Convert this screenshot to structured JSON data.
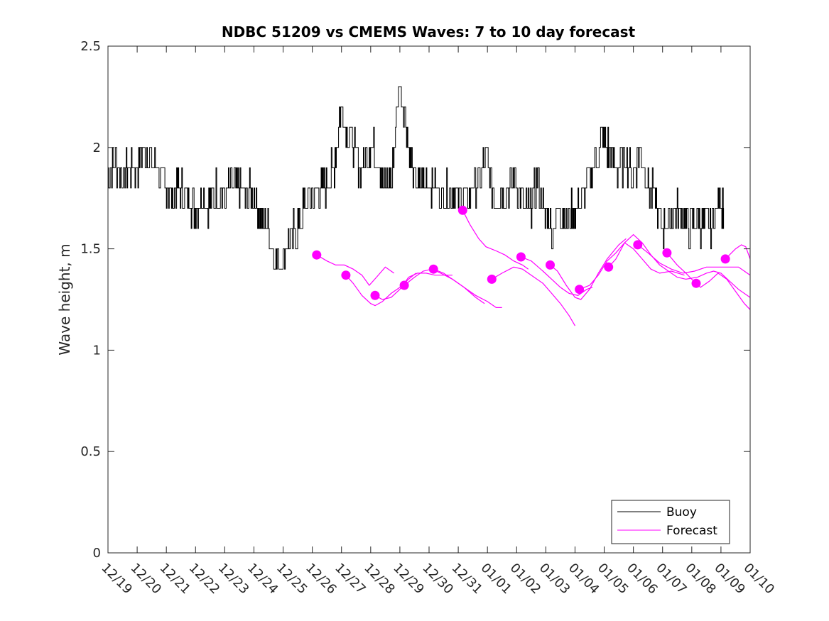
{
  "chart_data": {
    "type": "line",
    "title": "NDBC 51209 vs CMEMS Waves: 7 to 10 day forecast",
    "xlabel": "",
    "ylabel": "Wave height, m",
    "ylim": [
      0,
      2.5
    ],
    "yticks": [
      0,
      0.5,
      1,
      1.5,
      2,
      2.5
    ],
    "yticklabels": [
      "0",
      "0.5",
      "1",
      "1.5",
      "2",
      "2.5"
    ],
    "xlim": [
      0,
      22
    ],
    "xticklabels": [
      "12/19",
      "12/20",
      "12/21",
      "12/22",
      "12/23",
      "12/24",
      "12/25",
      "12/26",
      "12/27",
      "12/28",
      "12/29",
      "12/30",
      "12/31",
      "01/01",
      "01/02",
      "01/03",
      "01/04",
      "01/05",
      "01/06",
      "01/07",
      "01/08",
      "01/09",
      "01/10"
    ],
    "colors": {
      "buoy": "#000000",
      "forecast": "#ff00ff"
    },
    "legend": {
      "position": "bottom-right",
      "entries": [
        "Buoy",
        "Forecast"
      ]
    },
    "buoy": {
      "name": "Buoy",
      "x": [
        0,
        0.25,
        0.5,
        0.75,
        1,
        1.25,
        1.5,
        1.75,
        2,
        2.25,
        2.5,
        2.75,
        3,
        3.25,
        3.5,
        3.75,
        4,
        4.25,
        4.5,
        4.75,
        5,
        5.25,
        5.5,
        5.75,
        6,
        6.25,
        6.5,
        6.75,
        7,
        7.25,
        7.5,
        7.75,
        8,
        8.25,
        8.5,
        8.75,
        9,
        9.25,
        9.5,
        9.75,
        10,
        10.25,
        10.5,
        10.75,
        11,
        11.25,
        11.5,
        11.75,
        12,
        12.25,
        12.5,
        12.75,
        13,
        13.25,
        13.5,
        13.75,
        14,
        14.25,
        14.5,
        14.75,
        15,
        15.25,
        15.5,
        15.75,
        16,
        16.25,
        16.5,
        16.75,
        17,
        17.25,
        17.5,
        17.75,
        18,
        18.25,
        18.5,
        18.75,
        19,
        19.25,
        19.5,
        19.75,
        20,
        20.25,
        20.5,
        20.75,
        21,
        21.1
      ],
      "values": [
        1.85,
        1.95,
        1.85,
        1.9,
        1.9,
        2.0,
        1.95,
        1.9,
        1.8,
        1.75,
        1.8,
        1.75,
        1.7,
        1.75,
        1.7,
        1.8,
        1.75,
        1.8,
        1.8,
        1.75,
        1.8,
        1.65,
        1.6,
        1.45,
        1.45,
        1.55,
        1.6,
        1.7,
        1.75,
        1.8,
        1.8,
        1.9,
        2.2,
        2.1,
        1.95,
        1.9,
        2.0,
        1.95,
        1.8,
        1.85,
        2.35,
        2.1,
        1.85,
        1.8,
        1.85,
        1.8,
        1.75,
        1.8,
        1.75,
        1.75,
        1.8,
        1.85,
        1.95,
        1.75,
        1.8,
        1.8,
        1.85,
        1.7,
        1.7,
        1.85,
        1.65,
        1.6,
        1.7,
        1.65,
        1.7,
        1.75,
        1.85,
        1.95,
        2.05,
        1.95,
        1.9,
        1.95,
        1.85,
        2.0,
        1.8,
        1.75,
        1.6,
        1.65,
        1.7,
        1.65,
        1.6,
        1.65,
        1.6,
        1.65,
        1.75,
        1.7
      ]
    },
    "forecast_segments": [
      {
        "x": [
          7.15,
          7.5,
          7.8,
          8.1,
          8.4,
          8.7,
          8.95,
          9.2,
          9.5,
          9.8
        ],
        "values": [
          1.47,
          1.44,
          1.42,
          1.42,
          1.4,
          1.37,
          1.32,
          1.36,
          1.41,
          1.38
        ]
      },
      {
        "x": [
          8.15,
          8.4,
          8.7,
          9.0,
          9.15,
          9.4,
          9.7,
          10.0,
          10.3,
          10.55
        ],
        "values": [
          1.37,
          1.33,
          1.27,
          1.23,
          1.22,
          1.24,
          1.28,
          1.31,
          1.35,
          1.38
        ]
      },
      {
        "x": [
          9.15,
          9.4,
          9.7,
          10.0,
          10.3,
          10.6,
          10.9,
          11.2,
          11.5,
          11.8
        ],
        "values": [
          1.27,
          1.25,
          1.26,
          1.3,
          1.36,
          1.38,
          1.38,
          1.37,
          1.37,
          1.37
        ]
      },
      {
        "x": [
          10.15,
          10.5,
          10.8,
          11.1,
          11.4,
          11.8,
          12.2,
          12.6,
          12.9
        ],
        "values": [
          1.32,
          1.36,
          1.39,
          1.4,
          1.38,
          1.35,
          1.31,
          1.26,
          1.23
        ]
      },
      {
        "x": [
          11.15,
          11.5,
          11.9,
          12.3,
          12.6,
          13.0,
          13.3,
          13.5
        ],
        "values": [
          1.4,
          1.38,
          1.34,
          1.3,
          1.27,
          1.24,
          1.21,
          1.21
        ]
      },
      {
        "x": [
          12.15,
          12.4,
          12.7,
          12.95,
          13.3,
          13.6,
          13.9,
          14.2,
          14.4
        ],
        "values": [
          1.69,
          1.62,
          1.55,
          1.51,
          1.49,
          1.47,
          1.44,
          1.42,
          1.4
        ]
      },
      {
        "x": [
          13.15,
          13.5,
          13.9,
          14.2,
          14.5,
          14.9,
          15.2,
          15.5,
          15.8,
          16.0
        ],
        "values": [
          1.35,
          1.38,
          1.41,
          1.4,
          1.37,
          1.33,
          1.28,
          1.23,
          1.17,
          1.12
        ]
      },
      {
        "x": [
          14.15,
          14.5,
          14.9,
          15.2,
          15.5,
          15.8,
          16.1,
          16.4,
          16.6
        ],
        "values": [
          1.46,
          1.44,
          1.39,
          1.35,
          1.31,
          1.28,
          1.27,
          1.3,
          1.31
        ]
      },
      {
        "x": [
          15.15,
          15.4,
          15.7,
          16.0,
          16.2,
          16.5,
          16.8,
          17.1,
          17.5,
          17.75
        ],
        "values": [
          1.42,
          1.39,
          1.32,
          1.26,
          1.25,
          1.3,
          1.38,
          1.45,
          1.52,
          1.55
        ]
      },
      {
        "x": [
          16.15,
          16.5,
          16.8,
          17.1,
          17.4,
          17.7,
          18.0,
          18.3,
          18.6,
          18.9,
          19.3,
          19.75
        ],
        "values": [
          1.3,
          1.32,
          1.37,
          1.44,
          1.48,
          1.53,
          1.5,
          1.45,
          1.4,
          1.38,
          1.39,
          1.37
        ]
      },
      {
        "x": [
          17.15,
          17.4,
          17.7,
          18.0,
          18.3,
          18.6,
          18.9,
          19.2,
          19.5,
          19.8,
          20.2,
          20.5,
          20.75,
          21.0,
          21.3,
          21.6,
          22.0
        ],
        "values": [
          1.41,
          1.45,
          1.53,
          1.57,
          1.53,
          1.47,
          1.42,
          1.39,
          1.36,
          1.35,
          1.36,
          1.38,
          1.39,
          1.38,
          1.34,
          1.3,
          1.26
        ]
      },
      {
        "x": [
          18.15,
          18.5,
          18.9,
          19.3,
          19.7,
          20.1,
          20.5,
          20.9,
          21.3,
          21.6,
          21.8,
          22.0
        ],
        "values": [
          1.52,
          1.48,
          1.43,
          1.4,
          1.38,
          1.39,
          1.41,
          1.41,
          1.41,
          1.41,
          1.39,
          1.37
        ]
      },
      {
        "x": [
          19.15,
          19.5,
          19.8,
          20.0,
          20.15,
          20.3,
          20.6,
          20.9,
          21.2,
          21.5,
          21.8,
          22.0
        ],
        "values": [
          1.48,
          1.42,
          1.38,
          1.35,
          1.33,
          1.31,
          1.34,
          1.38,
          1.35,
          1.29,
          1.23,
          1.2
        ]
      },
      {
        "x": [
          21.15,
          21.5,
          21.7,
          21.85,
          22.0
        ],
        "values": [
          1.45,
          1.5,
          1.52,
          1.51,
          1.45
        ]
      }
    ],
    "forecast_markers": {
      "x": [
        7.15,
        8.15,
        9.15,
        10.15,
        11.15,
        12.15,
        13.15,
        14.15,
        15.15,
        16.15,
        17.15,
        18.15,
        19.15,
        20.15,
        21.15
      ],
      "values": [
        1.47,
        1.37,
        1.27,
        1.32,
        1.4,
        1.69,
        1.35,
        1.46,
        1.42,
        1.3,
        1.41,
        1.52,
        1.48,
        1.33,
        1.45
      ]
    }
  }
}
